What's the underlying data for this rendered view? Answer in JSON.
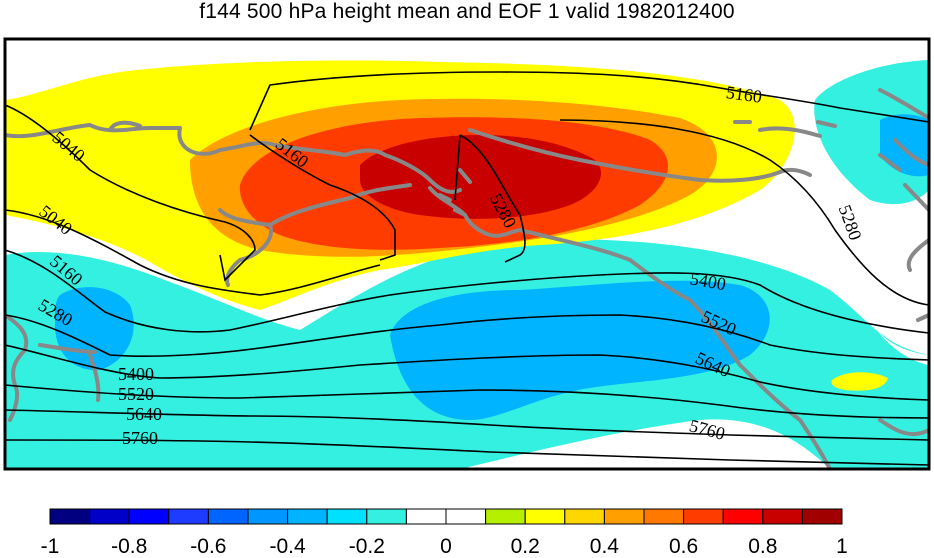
{
  "title": "f144 500 hPa height mean and EOF 1 valid 1982012400",
  "contour_labels": [
    "5160",
    "5040",
    "5160",
    "5280",
    "5040",
    "5160",
    "5280",
    "5400",
    "5520",
    "5640",
    "5760",
    "5400",
    "5520",
    "5640",
    "5760",
    "5280"
  ],
  "colorbar": {
    "colors": [
      "#000080",
      "#0000c8",
      "#0000ff",
      "#1e3cff",
      "#0064ff",
      "#0096ff",
      "#00b4ff",
      "#00e0ff",
      "#33f0e0",
      "#ffffff",
      "#ffffff",
      "#b4f000",
      "#ffff00",
      "#ffd700",
      "#ffa000",
      "#ff7800",
      "#ff3c00",
      "#ff0000",
      "#c80000",
      "#a00000"
    ],
    "tick_labels": [
      "-1",
      "-0.8",
      "-0.6",
      "-0.4",
      "-0.2",
      "0",
      "0.2",
      "0.4",
      "0.6",
      "0.8",
      "1"
    ]
  },
  "map_colors": {
    "yellow": "#ffff00",
    "orange": "#ffa000",
    "orange_red": "#ff3c00",
    "dark_red": "#c80000",
    "cyan": "#33f0e0",
    "light_blue": "#00b4ff",
    "blue": "#0096ff",
    "coast": "#888888"
  }
}
